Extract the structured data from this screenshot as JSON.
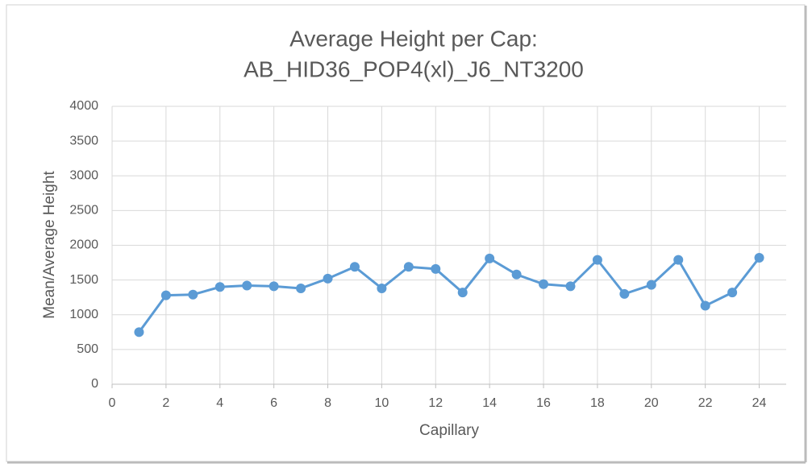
{
  "chart_data": {
    "type": "line",
    "title": [
      "Average Height per Cap:",
      "AB_HID36_POP4(xl)_J6_NT3200"
    ],
    "x_label": "Capillary",
    "y_label": "Mean/Average Height",
    "x": [
      1,
      2,
      3,
      4,
      5,
      6,
      7,
      8,
      9,
      10,
      11,
      12,
      13,
      14,
      15,
      16,
      17,
      18,
      19,
      20,
      21,
      22,
      23,
      24
    ],
    "series": [
      {
        "name": "Mean/Average Height",
        "color": "#5b9bd5",
        "values": [
          750,
          1280,
          1290,
          1400,
          1420,
          1410,
          1380,
          1520,
          1690,
          1380,
          1690,
          1660,
          1320,
          1810,
          1580,
          1440,
          1410,
          1790,
          1300,
          1430,
          1790,
          1130,
          1320,
          1820
        ]
      }
    ],
    "xlim": [
      0,
      25
    ],
    "xticks": [
      0,
      2,
      4,
      6,
      8,
      10,
      12,
      14,
      16,
      18,
      20,
      22,
      24
    ],
    "ylim": [
      0,
      4000
    ],
    "yticks": [
      0,
      500,
      1000,
      1500,
      2000,
      2500,
      3000,
      3500,
      4000
    ],
    "grid": true
  }
}
